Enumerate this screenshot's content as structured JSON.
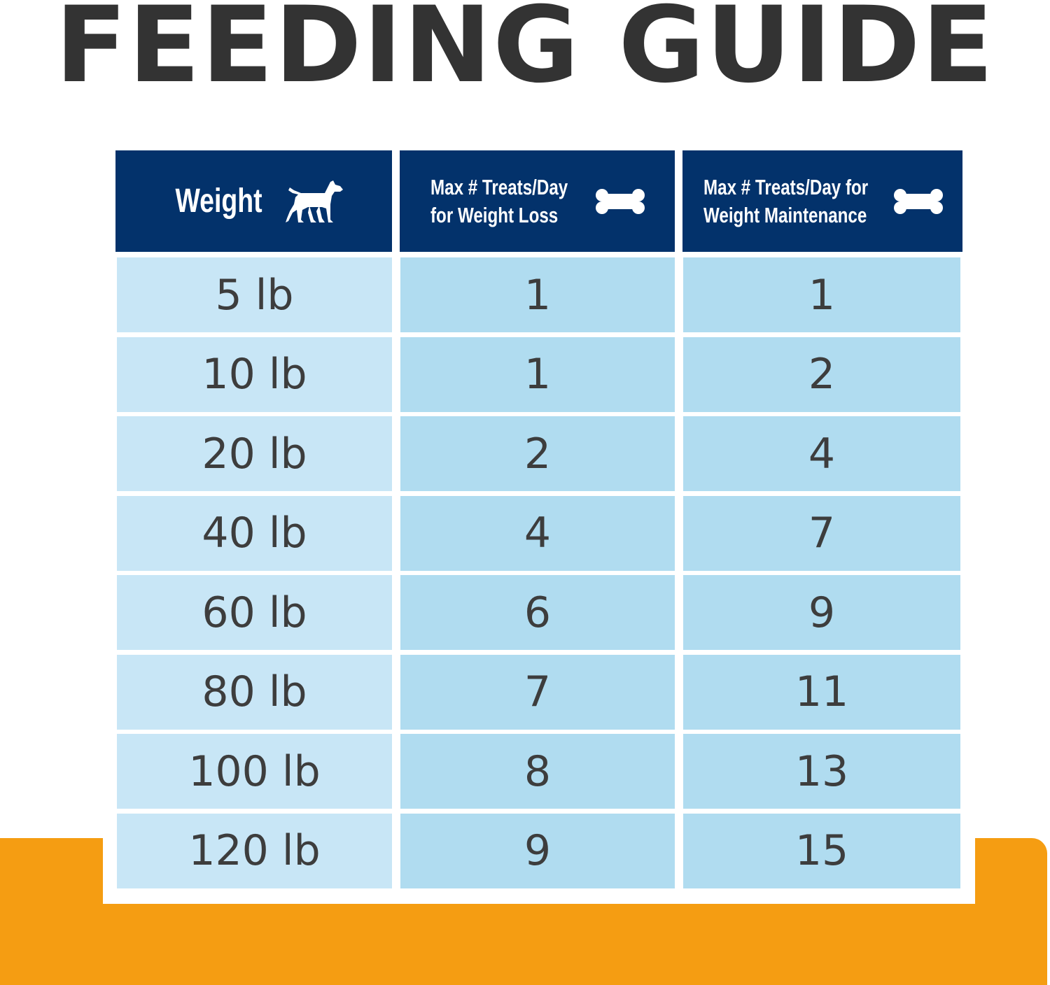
{
  "title": "FEEDING GUIDE",
  "colors": {
    "title": "#333333",
    "header_bg": "#03326b",
    "weight_col_bg": "#c8e6f6",
    "value_col_bg": "#b0dcf0",
    "text": "#3d3d3d",
    "orange": "#f59d12"
  },
  "icons": {
    "weight": "dog-icon",
    "treats": "bone-icon"
  },
  "headers": {
    "weight": "Weight",
    "loss_line1": "Max # Treats/Day",
    "loss_line2": "for Weight Loss",
    "maint_line1": "Max # Treats/Day for",
    "maint_line2": "Weight Maintenance"
  },
  "rows": [
    {
      "weight": "5 lb",
      "loss": "1",
      "maint": "1"
    },
    {
      "weight": "10 lb",
      "loss": "1",
      "maint": "2"
    },
    {
      "weight": "20 lb",
      "loss": "2",
      "maint": "4"
    },
    {
      "weight": "40 lb",
      "loss": "4",
      "maint": "7"
    },
    {
      "weight": "60 lb",
      "loss": "6",
      "maint": "9"
    },
    {
      "weight": "80 lb",
      "loss": "7",
      "maint": "11"
    },
    {
      "weight": "100 lb",
      "loss": "8",
      "maint": "13"
    },
    {
      "weight": "120 lb",
      "loss": "9",
      "maint": "15"
    }
  ]
}
